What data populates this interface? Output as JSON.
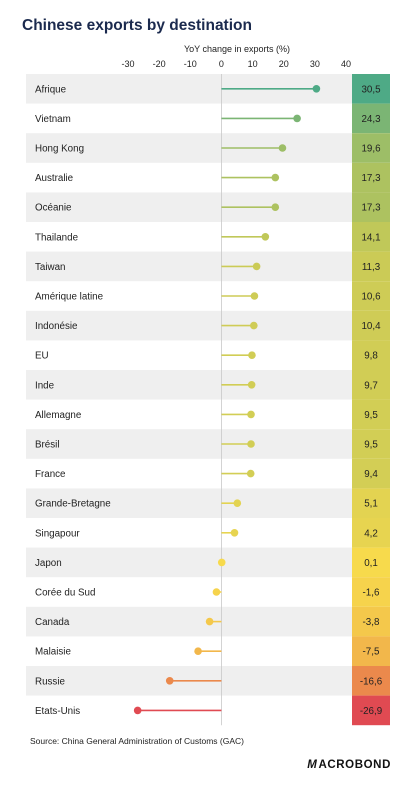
{
  "title": "Chinese exports by destination",
  "source": "Source: China General Administration of Customs (GAC)",
  "brand": {
    "mark": "M",
    "rest": "ACROBOND"
  },
  "chart_data": {
    "type": "lollipop",
    "xlabel": "YoY change in exports (%)",
    "xlim": [
      -30,
      40
    ],
    "ticks": [
      -30,
      -20,
      -10,
      0,
      10,
      20,
      30,
      40
    ],
    "grid": false,
    "categories": [
      "Afrique",
      "Vietnam",
      "Hong Kong",
      "Australie",
      "Océanie",
      "Thailande",
      "Taiwan",
      "Amérique latine",
      "Indonésie",
      "EU",
      "Inde",
      "Allemagne",
      "Brésil",
      "France",
      "Grande-Bretagne",
      "Singapour",
      "Japon",
      "Corée du Sud",
      "Canada",
      "Malaisie",
      "Russie",
      "Etats-Unis"
    ],
    "values": [
      30.5,
      24.3,
      19.6,
      17.3,
      17.3,
      14.1,
      11.3,
      10.6,
      10.4,
      9.8,
      9.7,
      9.5,
      9.5,
      9.4,
      5.1,
      4.2,
      0.1,
      -1.6,
      -3.8,
      -7.5,
      -16.6,
      -26.9
    ],
    "value_labels": [
      "30,5",
      "24,3",
      "19,6",
      "17,3",
      "17,3",
      "14,1",
      "11,3",
      "10,6",
      "10,4",
      "9,8",
      "9,7",
      "9,5",
      "9,5",
      "9,4",
      "5,1",
      "4,2",
      "0,1",
      "-1,6",
      "-3,8",
      "-7,5",
      "-16,6",
      "-26,9"
    ],
    "color_scale": {
      "low": "#e04a52",
      "mid_low": "#ee9c4a",
      "zero": "#f7da4c",
      "mid_high": "#bcc65a",
      "high": "#4eaa86"
    }
  }
}
